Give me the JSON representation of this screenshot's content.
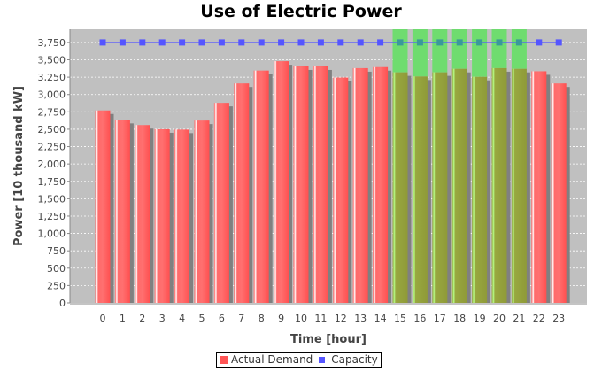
{
  "chart_data": {
    "type": "bar",
    "title": "Use of Electric Power",
    "xlabel": "Time [hour]",
    "ylabel": "Power [10 thousand kW]",
    "categories": [
      "0",
      "1",
      "2",
      "3",
      "4",
      "5",
      "6",
      "7",
      "8",
      "9",
      "10",
      "11",
      "12",
      "13",
      "14",
      "15",
      "16",
      "17",
      "18",
      "19",
      "20",
      "21",
      "22",
      "23"
    ],
    "series": [
      {
        "name": "Actual Demand",
        "type": "bar",
        "color": "#ff5555",
        "values": [
          2770,
          2635,
          2560,
          2500,
          2495,
          2625,
          2880,
          3160,
          3345,
          3480,
          3405,
          3405,
          3245,
          3380,
          3395,
          3320,
          3260,
          3320,
          3370,
          3255,
          3380,
          3370,
          3335,
          3160
        ]
      },
      {
        "name": "Capacity",
        "type": "line",
        "color": "#5555ff",
        "values": [
          3750,
          3750,
          3750,
          3750,
          3750,
          3750,
          3750,
          3750,
          3750,
          3750,
          3750,
          3750,
          3750,
          3750,
          3750,
          3750,
          3750,
          3750,
          3750,
          3750,
          3750,
          3750,
          3750,
          3750
        ]
      }
    ],
    "highlighted_hours": [
      15,
      16,
      17,
      18,
      19,
      20,
      21
    ],
    "highlight_color": "#6fdc6f",
    "yticks": [
      0,
      250,
      500,
      750,
      1000,
      1250,
      1500,
      1750,
      2000,
      2250,
      2500,
      2750,
      3000,
      3250,
      3500,
      3750
    ],
    "ytick_labels": [
      "0",
      "250",
      "500",
      "750",
      "1,000",
      "1,250",
      "1,500",
      "1,750",
      "2,000",
      "2,250",
      "2,500",
      "2,750",
      "3,000",
      "3,250",
      "3,500",
      "3,750"
    ],
    "ylim": [
      0,
      3940
    ],
    "grid": true,
    "legend": "bottom"
  }
}
